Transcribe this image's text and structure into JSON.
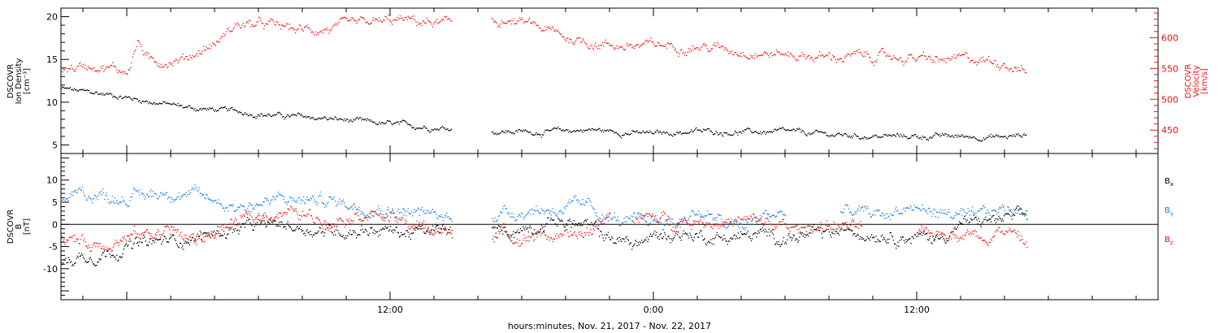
{
  "figure": {
    "time_axis": {
      "label": "hours:minutes, Nov. 21, 2017 - Nov. 22, 2017",
      "range_hours": [
        -3.0,
        47.0
      ],
      "ticks": [
        {
          "t": 12,
          "label": "12:00"
        },
        {
          "t": 24,
          "label": "0:00"
        },
        {
          "t": 36,
          "label": "12:00"
        }
      ],
      "minor_tick_step_hours": 2
    },
    "colors": {
      "black": "#000000",
      "red": "#ee1111",
      "blue": "#1a7fe0"
    }
  },
  "chart_data": [
    {
      "type": "scatter",
      "panel": "top",
      "left_axis": {
        "label_lines": [
          "DSCOVR",
          "Ion Density",
          "[cm⁻³]"
        ],
        "ylim": [
          4,
          21
        ],
        "ticks": [
          5,
          10,
          15,
          20
        ]
      },
      "right_axis": {
        "label_lines": [
          "DSCOVR",
          "Velocity",
          "[km/s]"
        ],
        "ylim": [
          412,
          648
        ],
        "ticks": [
          450,
          500,
          550,
          600
        ],
        "color": "#ee1111"
      },
      "series": [
        {
          "key": "density",
          "axis": "left",
          "color": "#000000",
          "gaps": [
            [
              14.8,
              16.6
            ]
          ],
          "knots": [
            [
              -3.0,
              11.6
            ],
            [
              -2.0,
              11.2
            ],
            [
              -0.5,
              10.8
            ],
            [
              0.5,
              10.3
            ],
            [
              1.5,
              9.9
            ],
            [
              3.0,
              9.3
            ],
            [
              5.0,
              8.9
            ],
            [
              7.0,
              8.4
            ],
            [
              9.0,
              8.1
            ],
            [
              11.0,
              7.6
            ],
            [
              12.5,
              7.3
            ],
            [
              14.5,
              7.0
            ],
            [
              16.6,
              6.6
            ],
            [
              19.0,
              6.5
            ],
            [
              21.0,
              6.8
            ],
            [
              23.0,
              6.4
            ],
            [
              24.0,
              6.3
            ],
            [
              26.0,
              6.6
            ],
            [
              28.0,
              6.5
            ],
            [
              30.0,
              6.5
            ],
            [
              32.0,
              6.2
            ],
            [
              34.0,
              6.0
            ],
            [
              36.5,
              6.0
            ],
            [
              38.5,
              6.0
            ],
            [
              40.0,
              5.9
            ],
            [
              41.0,
              6.2
            ]
          ]
        },
        {
          "key": "velocity",
          "axis": "right",
          "color": "#ee1111",
          "gaps": [
            [
              14.8,
              16.6
            ]
          ],
          "knots": [
            [
              -3.0,
              548
            ],
            [
              -1.5,
              557
            ],
            [
              0.0,
              545
            ],
            [
              0.5,
              595
            ],
            [
              1.0,
              560
            ],
            [
              2.5,
              565
            ],
            [
              4.0,
              590
            ],
            [
              5.0,
              622
            ],
            [
              6.5,
              620
            ],
            [
              8.0,
              612
            ],
            [
              9.5,
              615
            ],
            [
              11.0,
              623
            ],
            [
              12.5,
              628
            ],
            [
              14.5,
              622
            ],
            [
              16.6,
              628
            ],
            [
              18.5,
              620
            ],
            [
              20.0,
              600
            ],
            [
              21.5,
              590
            ],
            [
              23.0,
              586
            ],
            [
              25.0,
              588
            ],
            [
              27.0,
              583
            ],
            [
              29.0,
              575
            ],
            [
              30.5,
              572
            ],
            [
              32.0,
              568
            ],
            [
              33.5,
              570
            ],
            [
              35.5,
              568
            ],
            [
              37.0,
              562
            ],
            [
              38.5,
              565
            ],
            [
              40.0,
              560
            ],
            [
              41.0,
              545
            ]
          ]
        }
      ]
    },
    {
      "type": "scatter",
      "panel": "bottom",
      "left_axis": {
        "label_lines": [
          "DSCOVR",
          "B",
          "[nT]"
        ],
        "ylim": [
          -17,
          16
        ],
        "ticks": [
          -10,
          -5,
          0,
          5,
          10
        ]
      },
      "zero_line": true,
      "series": [
        {
          "name": "Bx",
          "key": "bx",
          "color": "#000000",
          "gaps": [
            [
              14.8,
              16.6
            ]
          ],
          "knots": [
            [
              -3.0,
              -9.0
            ],
            [
              -2.0,
              -7.0
            ],
            [
              -1.0,
              -6.5
            ],
            [
              0.0,
              -5.0
            ],
            [
              1.5,
              -4.0
            ],
            [
              3.0,
              -3.0
            ],
            [
              5.0,
              -1.0
            ],
            [
              7.0,
              0.0
            ],
            [
              9.0,
              -1.5
            ],
            [
              11.0,
              -1.0
            ],
            [
              13.0,
              -2.0
            ],
            [
              14.8,
              -1.5
            ],
            [
              16.6,
              -2.0
            ],
            [
              18.0,
              -1.0
            ],
            [
              19.5,
              1.0
            ],
            [
              21.0,
              -0.5
            ],
            [
              22.0,
              -3.0
            ],
            [
              23.0,
              -4.5
            ],
            [
              24.0,
              -3.0
            ],
            [
              25.0,
              -2.0
            ],
            [
              27.0,
              -3.0
            ],
            [
              29.0,
              -2.5
            ],
            [
              30.5,
              -3.0
            ],
            [
              31.5,
              -2.5
            ],
            [
              33.0,
              -1.5
            ],
            [
              34.5,
              -2.0
            ],
            [
              36.0,
              -3.0
            ],
            [
              37.0,
              -3.0
            ],
            [
              38.0,
              0.0
            ],
            [
              39.5,
              1.0
            ],
            [
              41.0,
              1.5
            ]
          ]
        },
        {
          "name": "By",
          "key": "by",
          "color": "#1a7fe0",
          "gaps": [
            [
              14.8,
              16.6
            ],
            [
              30.0,
              32.5
            ]
          ],
          "knots": [
            [
              -3.0,
              5.5
            ],
            [
              -2.0,
              7.0
            ],
            [
              0.0,
              6.0
            ],
            [
              2.0,
              7.5
            ],
            [
              4.0,
              5.5
            ],
            [
              5.0,
              4.0
            ],
            [
              7.0,
              5.5
            ],
            [
              9.0,
              5.5
            ],
            [
              11.0,
              4.0
            ],
            [
              12.5,
              3.0
            ],
            [
              14.8,
              1.5
            ],
            [
              16.6,
              2.5
            ],
            [
              18.0,
              3.0
            ],
            [
              19.5,
              3.5
            ],
            [
              21.0,
              4.0
            ],
            [
              22.0,
              1.5
            ],
            [
              23.0,
              0.0
            ],
            [
              24.0,
              1.0
            ],
            [
              25.0,
              0.5
            ],
            [
              26.0,
              3.0
            ],
            [
              27.0,
              0.5
            ],
            [
              28.0,
              -1.0
            ],
            [
              29.0,
              2.0
            ],
            [
              30.0,
              2.5
            ],
            [
              32.5,
              3.0
            ],
            [
              33.5,
              2.5
            ],
            [
              34.5,
              2.0
            ],
            [
              35.5,
              4.0
            ],
            [
              36.5,
              3.0
            ],
            [
              37.5,
              2.5
            ],
            [
              38.5,
              1.0
            ],
            [
              39.5,
              3.0
            ],
            [
              41.0,
              4.0
            ]
          ]
        },
        {
          "name": "Bz",
          "key": "bz",
          "color": "#ee1111",
          "gaps": [
            [
              14.8,
              16.6
            ],
            [
              22.0,
              23.0
            ],
            [
              33.5,
              36.0
            ]
          ],
          "knots": [
            [
              -3.0,
              -3.0
            ],
            [
              -1.5,
              -4.5
            ],
            [
              0.0,
              -3.0
            ],
            [
              2.0,
              -1.0
            ],
            [
              3.0,
              -4.0
            ],
            [
              5.0,
              0.5
            ],
            [
              7.0,
              3.0
            ],
            [
              9.0,
              1.0
            ],
            [
              11.0,
              3.0
            ],
            [
              12.5,
              0.5
            ],
            [
              14.0,
              -1.5
            ],
            [
              14.8,
              -2.0
            ],
            [
              16.6,
              -1.5
            ],
            [
              18.0,
              -3.0
            ],
            [
              19.0,
              -2.0
            ],
            [
              20.0,
              -3.5
            ],
            [
              21.0,
              -2.0
            ],
            [
              22.0,
              2.5
            ],
            [
              23.0,
              1.5
            ],
            [
              24.5,
              1.0
            ],
            [
              26.0,
              1.0
            ],
            [
              27.5,
              0.5
            ],
            [
              29.0,
              0.5
            ],
            [
              30.5,
              -1.5
            ],
            [
              31.5,
              0.0
            ],
            [
              32.5,
              -0.5
            ],
            [
              33.5,
              -1.0
            ],
            [
              36.0,
              -3.0
            ],
            [
              37.5,
              -1.5
            ],
            [
              39.0,
              -2.5
            ],
            [
              40.0,
              -1.0
            ],
            [
              41.0,
              -4.5
            ]
          ]
        }
      ]
    }
  ]
}
